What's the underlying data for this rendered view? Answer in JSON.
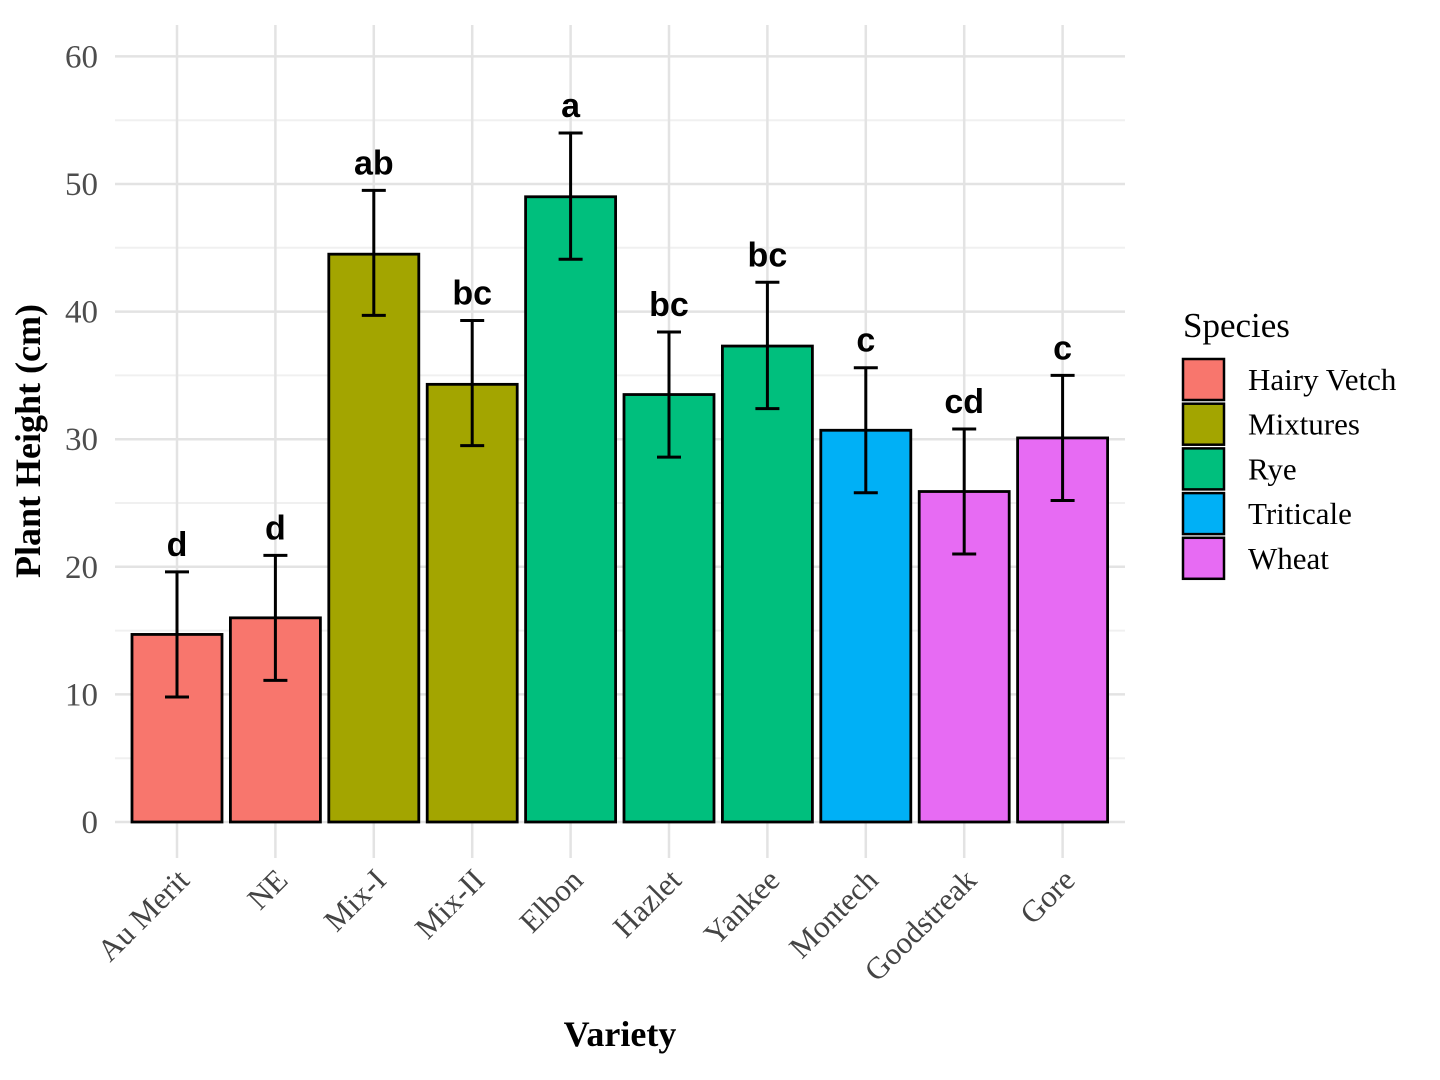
{
  "chart_data": {
    "type": "bar",
    "title": "",
    "xlabel": "Variety",
    "ylabel": "Plant Height (cm)",
    "ylim": [
      0,
      60
    ],
    "yticks": [
      0,
      10,
      20,
      30,
      40,
      50,
      60
    ],
    "y_minor_ticks": [
      5,
      15,
      25,
      35,
      45,
      55
    ],
    "grid": "horizontal major+minor, vertical major at each category, light gray on white",
    "legend_position": "right",
    "categories": [
      "Au Merit",
      "NE",
      "Mix-I",
      "Mix-II",
      "Elbon",
      "Hazlet",
      "Yankee",
      "Montech",
      "Goodstreak",
      "Gore"
    ],
    "values": [
      14.7,
      16.0,
      44.5,
      34.3,
      49.0,
      33.5,
      37.3,
      30.7,
      25.9,
      30.1
    ],
    "error_low": [
      9.8,
      11.1,
      39.7,
      29.5,
      44.1,
      28.6,
      32.4,
      25.8,
      21.0,
      25.2
    ],
    "error_high": [
      19.6,
      20.9,
      49.5,
      39.3,
      54.0,
      38.4,
      42.3,
      35.6,
      30.8,
      35.0
    ],
    "sig_letters": [
      "d",
      "d",
      "ab",
      "bc",
      "a",
      "bc",
      "bc",
      "c",
      "cd",
      "c"
    ],
    "bar_species": [
      "Hairy Vetch",
      "Hairy Vetch",
      "Mixtures",
      "Mixtures",
      "Rye",
      "Rye",
      "Rye",
      "Triticale",
      "Wheat",
      "Wheat"
    ],
    "legend": {
      "title": "Species",
      "entries": [
        {
          "label": "Hairy Vetch",
          "color": "#F8766D"
        },
        {
          "label": "Mixtures",
          "color": "#A3A500"
        },
        {
          "label": "Rye",
          "color": "#00BF7D"
        },
        {
          "label": "Triticale",
          "color": "#00B0F6"
        },
        {
          "label": "Wheat",
          "color": "#E76BF3"
        }
      ]
    },
    "colors": {
      "bar_border": "#000000",
      "error_bar": "#000000",
      "grid_major": "#E3E3E3",
      "grid_minor": "#F0F0F0",
      "axis_text": "#4D4D4D",
      "title_text": "#000000",
      "background": "#FFFFFF"
    }
  }
}
